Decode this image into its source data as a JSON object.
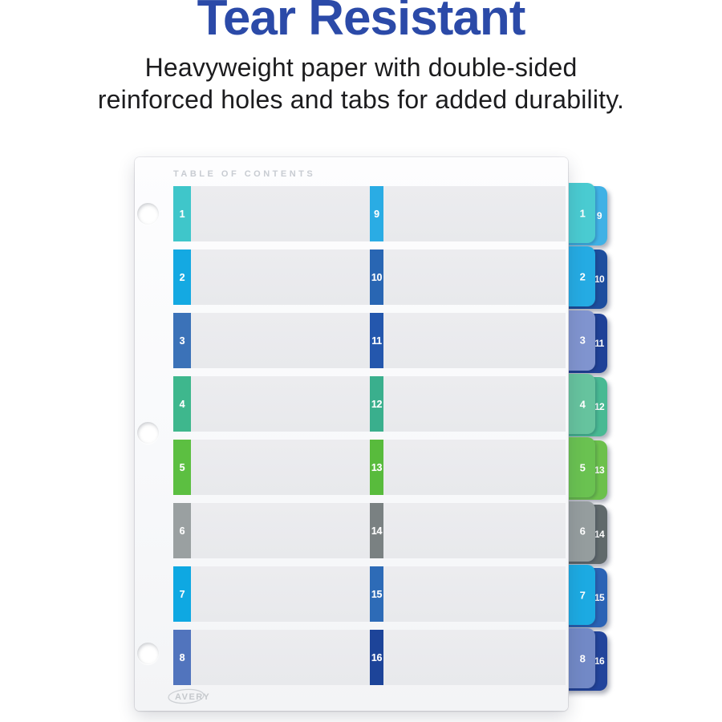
{
  "header": {
    "title": "Tear Resistant",
    "subtitle_line1": "Heavyweight paper with double-sided",
    "subtitle_line2": "reinforced holes and tabs for added durability."
  },
  "colors": {
    "title_blue": "#2b4aa8",
    "subtitle_text": "#1c1c1e",
    "row_band_gray": "#e9eaed",
    "toc_heading_gray": "#c8ccd2",
    "brand_gray": "#c5c8cc"
  },
  "sheet": {
    "heading": "TABLE OF CONTENTS",
    "brand": "AVERY",
    "hole_count": 3,
    "rows": [
      {
        "left_num": "1",
        "mid_num": "9",
        "left_color": "#3fc6ca",
        "mid_color": "#2aace4",
        "tab_front_color": "#4acbd1",
        "tab_back_color": "#40b1e5"
      },
      {
        "left_num": "2",
        "mid_num": "10",
        "left_color": "#14a9e2",
        "mid_color": "#2966b3",
        "tab_front_color": "#25abe3",
        "tab_back_color": "#1d4e9e"
      },
      {
        "left_num": "3",
        "mid_num": "11",
        "left_color": "#3b72b8",
        "mid_color": "#2457ad",
        "tab_front_color": "#8094cf",
        "tab_back_color": "#1f4197"
      },
      {
        "left_num": "4",
        "mid_num": "12",
        "left_color": "#3eb78d",
        "mid_color": "#3aaf8d",
        "tab_front_color": "#66c39e",
        "tab_back_color": "#48b993"
      },
      {
        "left_num": "5",
        "mid_num": "13",
        "left_color": "#5cbf41",
        "mid_color": "#58bb3c",
        "tab_front_color": "#6ac251",
        "tab_back_color": "#6cc04c"
      },
      {
        "left_num": "6",
        "mid_num": "14",
        "left_color": "#9aa0a1",
        "mid_color": "#7a8182",
        "tab_front_color": "#959d9e",
        "tab_back_color": "#60696b"
      },
      {
        "left_num": "7",
        "mid_num": "15",
        "left_color": "#0ea8e2",
        "mid_color": "#2d6bb7",
        "tab_front_color": "#1caae2",
        "tab_back_color": "#2b63b5"
      },
      {
        "left_num": "8",
        "mid_num": "16",
        "left_color": "#5174bd",
        "mid_color": "#1d4499",
        "tab_front_color": "#7289c6",
        "tab_back_color": "#22449b"
      }
    ]
  }
}
